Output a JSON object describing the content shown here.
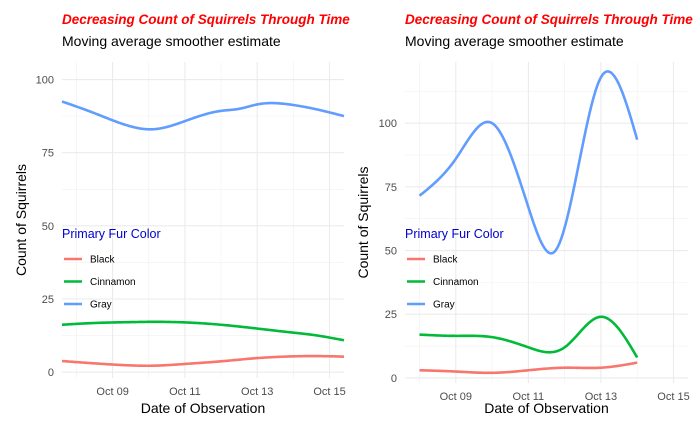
{
  "chart_data": [
    {
      "type": "line",
      "title": "Decreasing Count of Squirrels Through Time",
      "subtitle": "Moving average smoother estimate",
      "xlabel": "Date of Observation",
      "ylabel": "Count of Squirrels",
      "x_ticks": [
        "Oct 09",
        "Oct 11",
        "Oct 13",
        "Oct 15"
      ],
      "x_tick_values": [
        9,
        11,
        13,
        15
      ],
      "xlim": [
        7.6,
        15.4
      ],
      "ylim": [
        -2,
        106
      ],
      "y_ticks": [
        0,
        25,
        50,
        75,
        100
      ],
      "grid": true,
      "legend": {
        "title": "Primary Fur Color",
        "position": "left-inside"
      },
      "series": [
        {
          "name": "Black",
          "color": "#f8766d",
          "x": [
            7.6,
            8.5,
            9.5,
            10.1,
            11.0,
            12.0,
            13.0,
            14.0,
            14.5,
            15.4
          ],
          "y": [
            3.8,
            3.0,
            2.3,
            2.2,
            2.8,
            3.7,
            4.8,
            5.4,
            5.5,
            5.3
          ]
        },
        {
          "name": "Cinnamon",
          "color": "#00ba38",
          "x": [
            7.6,
            8.5,
            9.5,
            10.1,
            11.0,
            12.0,
            13.0,
            14.0,
            14.5,
            15.4
          ],
          "y": [
            16.2,
            16.8,
            17.1,
            17.2,
            17.0,
            16.2,
            14.9,
            13.5,
            12.8,
            10.9
          ]
        },
        {
          "name": "Gray",
          "color": "#619cff",
          "x": [
            7.6,
            8.5,
            9.5,
            10.1,
            11.0,
            12.0,
            12.5,
            13.0,
            14.0,
            14.5,
            15.4
          ],
          "y": [
            92.5,
            88.5,
            84.0,
            83.0,
            85.8,
            89.3,
            90.0,
            91.5,
            91.3,
            90.2,
            87.5
          ]
        }
      ]
    },
    {
      "type": "line",
      "title": "Decreasing Count of Squirrels Through Time",
      "subtitle": "Moving average smoother estimate",
      "xlabel": "Date of Observation",
      "ylabel": "Count of Squirrels",
      "x_ticks": [
        "Oct 09",
        "Oct 11",
        "Oct 13",
        "Oct 15"
      ],
      "x_tick_values": [
        9,
        11,
        13,
        15
      ],
      "xlim": [
        7.6,
        15.4
      ],
      "ylim": [
        -2,
        124
      ],
      "y_ticks": [
        0,
        25,
        50,
        75,
        100
      ],
      "grid": true,
      "legend": {
        "title": "Primary Fur Color",
        "position": "left-inside"
      },
      "series": [
        {
          "name": "Black",
          "color": "#f8766d",
          "x": [
            8,
            9,
            10,
            11,
            12,
            13,
            14
          ],
          "y": [
            3,
            2.5,
            2,
            3,
            4,
            4,
            6
          ]
        },
        {
          "name": "Cinnamon",
          "color": "#00ba38",
          "x": [
            8,
            9,
            10,
            11,
            12,
            13,
            14
          ],
          "y": [
            17,
            16.5,
            16,
            12,
            12,
            24,
            8
          ]
        },
        {
          "name": "Gray",
          "color": "#619cff",
          "x": [
            8,
            9,
            10,
            11,
            11.75,
            13,
            14
          ],
          "y": [
            71.5,
            86,
            100,
            67,
            50,
            118,
            93.5
          ]
        }
      ]
    }
  ]
}
